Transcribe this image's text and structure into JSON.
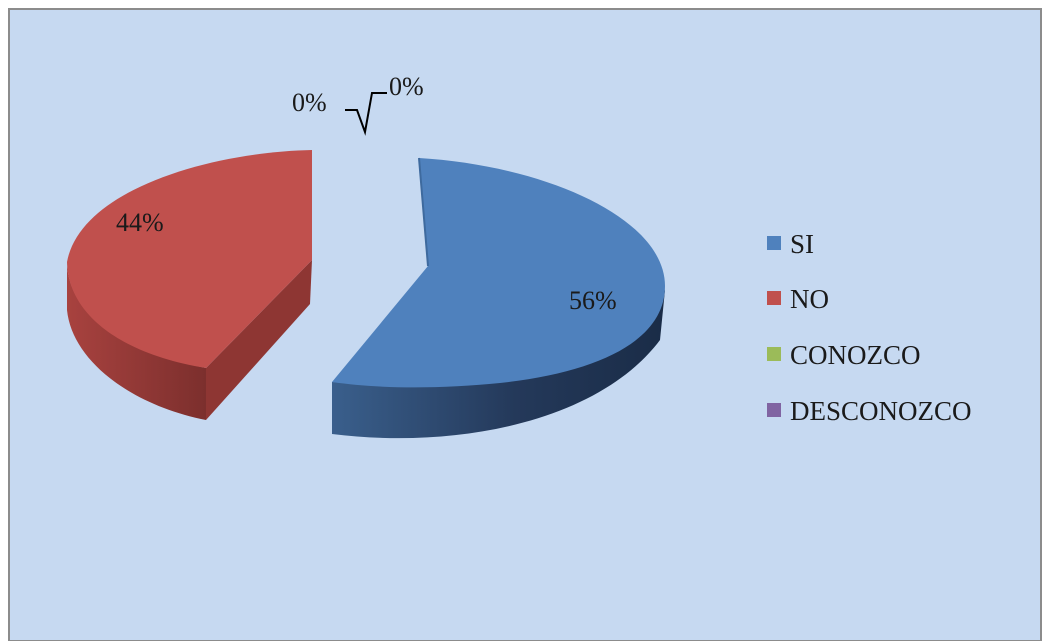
{
  "chart_data": {
    "type": "pie",
    "title": "",
    "categories": [
      "SI",
      "NO",
      "CONOZCO",
      "DESCONOZCO"
    ],
    "values": [
      56,
      44,
      0,
      0
    ],
    "data_labels": [
      "56%",
      "44%",
      "0%",
      "0%"
    ],
    "colors": [
      "#4F81BD",
      "#C0504D",
      "#9BBB59",
      "#8064A2"
    ],
    "legend_position": "right",
    "style": "3d-exploded"
  },
  "colors": {
    "plot_background": "#C6D9F1",
    "border": "#8C8C8C"
  }
}
